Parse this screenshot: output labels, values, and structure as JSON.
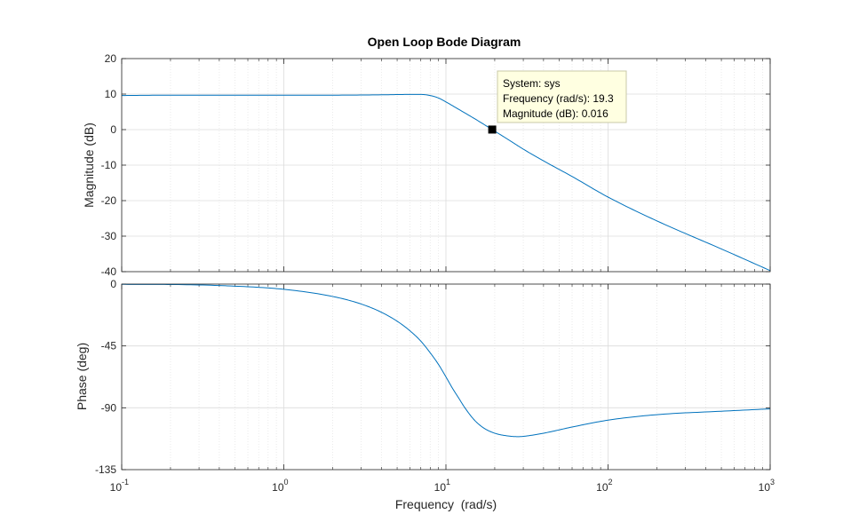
{
  "chart_data": {
    "type": "line",
    "title": "Open Loop Bode Diagram",
    "xlabel": "Frequency  (rad/s)",
    "x_scale": "log",
    "xlim": [
      0.1,
      1000
    ],
    "x_ticks": [
      {
        "value": 0.1,
        "base": "10",
        "exp": "-1"
      },
      {
        "value": 1,
        "base": "10",
        "exp": "0"
      },
      {
        "value": 10,
        "base": "10",
        "exp": "1"
      },
      {
        "value": 100,
        "base": "10",
        "exp": "2"
      },
      {
        "value": 1000,
        "base": "10",
        "exp": "3"
      }
    ],
    "grid": true,
    "color": "#0072bd",
    "subplots": [
      {
        "id": "magnitude",
        "ylabel": "Magnitude (dB)",
        "ylim": [
          -40,
          20
        ],
        "y_ticks": [
          20,
          10,
          0,
          -10,
          -20,
          -30,
          -40
        ],
        "series": [
          {
            "x": [
              0.1,
              0.2,
              0.5,
              1,
              2,
              4,
              6,
              7,
              8,
              9,
              10,
              12,
              15,
              19.3,
              25,
              30,
              40,
              60,
              100,
              200,
              500,
              1000
            ],
            "y": [
              9.6,
              9.7,
              9.7,
              9.7,
              9.7,
              9.8,
              9.9,
              9.9,
              9.6,
              8.9,
              7.8,
              5.7,
              3.1,
              0.016,
              -3.2,
              -5.5,
              -8.8,
              -13.2,
              -19.0,
              -25.7,
              -33.6,
              -39.7
            ]
          }
        ],
        "datatip": {
          "x": 19.3,
          "y": 0.016,
          "lines": [
            "System: sys",
            "Frequency (rad/s): 19.3",
            "Magnitude (dB): 0.016"
          ]
        }
      },
      {
        "id": "phase",
        "ylabel": "Phase (deg)",
        "ylim": [
          -135,
          0
        ],
        "y_ticks": [
          0,
          -45,
          -90,
          -135
        ],
        "series": [
          {
            "x": [
              0.1,
              0.2,
              0.5,
              1,
              2,
              3,
              4,
              5,
              6,
              7,
              8,
              9,
              10,
              11,
              12,
              13,
              15,
              17,
              20,
              25,
              28,
              30,
              40,
              60,
              100,
              200,
              500,
              1000
            ],
            "y": [
              -0.2,
              -0.3,
              -1.5,
              -3.8,
              -9.0,
              -14.5,
              -20.5,
              -27.0,
              -34.0,
              -41.5,
              -50.0,
              -58.5,
              -67.5,
              -76.0,
              -83.0,
              -89.5,
              -99.0,
              -104.5,
              -108.5,
              -110.7,
              -111.0,
              -110.8,
              -108.5,
              -104.0,
              -99.0,
              -95.0,
              -92.5,
              -90.8
            ]
          }
        ]
      }
    ]
  }
}
